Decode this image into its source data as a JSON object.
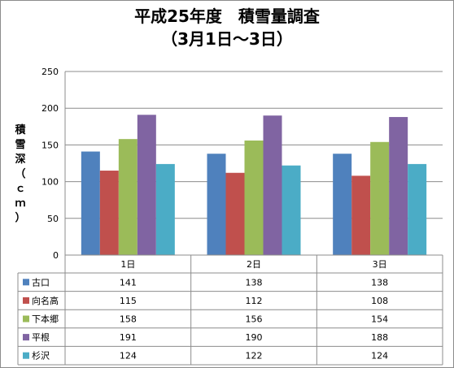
{
  "chart_data": {
    "type": "bar",
    "title": "平成25年度　積雪量調査",
    "subtitle": "（3月1日～3日）",
    "ylabel": "積雪深（ｃｍ）",
    "xlabel": "",
    "categories": [
      "1日",
      "2日",
      "3日"
    ],
    "ylim": [
      0,
      250
    ],
    "yticks": [
      0,
      50,
      100,
      150,
      200,
      250
    ],
    "grid": true,
    "legend": "data-table",
    "series": [
      {
        "name": "古口",
        "color": "#4f81bd",
        "values": [
          141,
          138,
          138
        ]
      },
      {
        "name": "向名高",
        "color": "#c0504d",
        "values": [
          115,
          112,
          108
        ]
      },
      {
        "name": "下本郷",
        "color": "#9bbb59",
        "values": [
          158,
          156,
          154
        ]
      },
      {
        "name": "平根",
        "color": "#8064a2",
        "values": [
          191,
          190,
          188
        ]
      },
      {
        "name": "杉沢",
        "color": "#4bacc6",
        "values": [
          124,
          122,
          124
        ]
      }
    ]
  }
}
